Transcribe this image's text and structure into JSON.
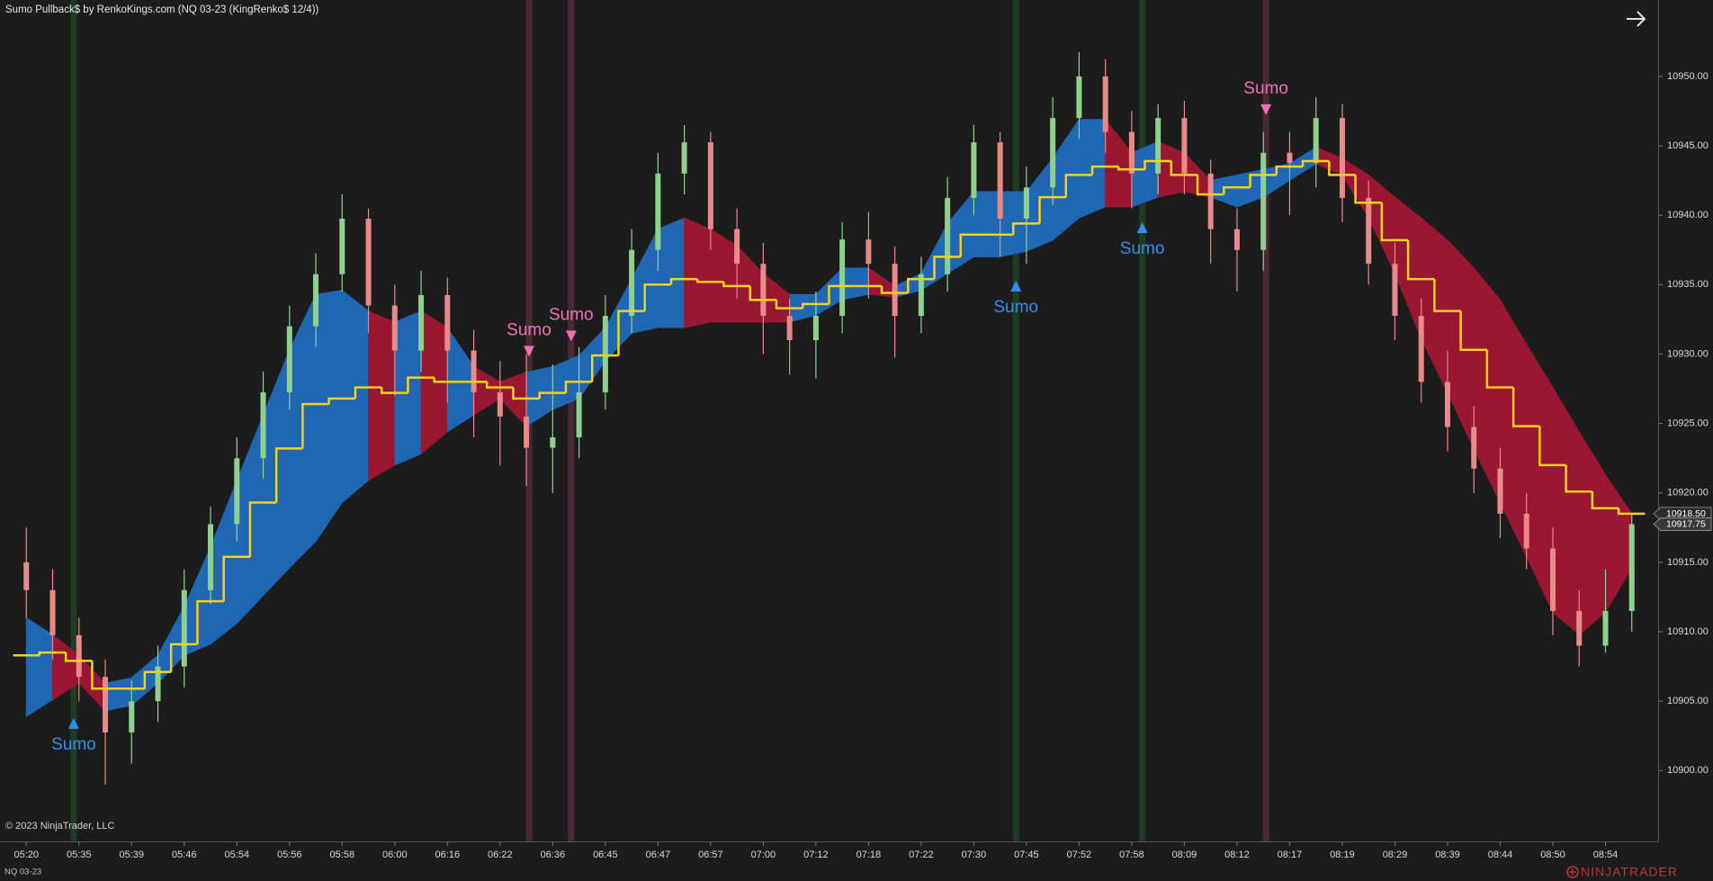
{
  "chart_data": {
    "type": "candlestick",
    "title": "Sumo Pullback$ by RenkoKings.com (NQ 03-23 (KingRenko$ 12/4))",
    "copyright": "© 2023 NinjaTrader, LLC",
    "instrument": "NQ 03-23",
    "brand": "NINJATRADER",
    "background": "#1c1c1c",
    "xlim": [
      -1,
      62
    ],
    "xticks": [
      {
        "value": 0,
        "label": "05:20"
      },
      {
        "value": 2,
        "label": "05:35"
      },
      {
        "value": 4,
        "label": "05:39"
      },
      {
        "value": 6,
        "label": "05:46"
      },
      {
        "value": 8,
        "label": "05:54"
      },
      {
        "value": 10,
        "label": "05:56"
      },
      {
        "value": 12,
        "label": "05:58"
      },
      {
        "value": 14,
        "label": "06:00"
      },
      {
        "value": 16,
        "label": "06:16"
      },
      {
        "value": 18,
        "label": "06:22"
      },
      {
        "value": 20,
        "label": "06:36"
      },
      {
        "value": 22,
        "label": "06:45"
      },
      {
        "value": 24,
        "label": "06:47"
      },
      {
        "value": 26,
        "label": "06:57"
      },
      {
        "value": 28,
        "label": "07:00"
      },
      {
        "value": 30,
        "label": "07:12"
      },
      {
        "value": 32,
        "label": "07:18"
      },
      {
        "value": 34,
        "label": "07:22"
      },
      {
        "value": 36,
        "label": "07:30"
      },
      {
        "value": 38,
        "label": "07:45"
      },
      {
        "value": 40,
        "label": "07:52"
      },
      {
        "value": 42,
        "label": "07:58"
      },
      {
        "value": 44,
        "label": "08:09"
      },
      {
        "value": 46,
        "label": "08:12"
      },
      {
        "value": 48,
        "label": "08:17"
      },
      {
        "value": 50,
        "label": "08:19"
      },
      {
        "value": 52,
        "label": "08:29"
      },
      {
        "value": 54,
        "label": "08:39"
      },
      {
        "value": 56,
        "label": "08:44"
      },
      {
        "value": 58,
        "label": "08:50"
      },
      {
        "value": 60,
        "label": "08:54"
      }
    ],
    "ylim": [
      10894.9,
      10955.5
    ],
    "yticks": [
      {
        "value": 10900,
        "label": "10900.00"
      },
      {
        "value": 10905,
        "label": "10905.00"
      },
      {
        "value": 10910,
        "label": "10910.00"
      },
      {
        "value": 10915,
        "label": "10915.00"
      },
      {
        "value": 10920,
        "label": "10920.00"
      },
      {
        "value": 10925,
        "label": "10925.00"
      },
      {
        "value": 10930,
        "label": "10930.00"
      },
      {
        "value": 10935,
        "label": "10935.00"
      },
      {
        "value": 10940,
        "label": "10940.00"
      },
      {
        "value": 10945,
        "label": "10945.00"
      },
      {
        "value": 10950,
        "label": "10950.00"
      }
    ],
    "grid": false,
    "candles": {
      "up_color": "#8fd08f",
      "down_color": "#e88a8a",
      "open": [
        10915.0,
        10913.0,
        10909.75,
        10906.75,
        10902.75,
        10905.0,
        10907.5,
        10913.0,
        10917.75,
        10922.5,
        10927.25,
        10932.0,
        10935.75,
        10939.75,
        10933.5,
        10930.25,
        10934.25,
        10930.25,
        10927.25,
        10925.5,
        10923.25,
        10924.0,
        10927.25,
        10932.75,
        10937.5,
        10943.0,
        10945.25,
        10939.0,
        10936.5,
        10932.75,
        10931.0,
        10932.75,
        10938.25,
        10936.5,
        10932.75,
        10935.75,
        10941.25,
        10945.25,
        10939.75,
        10942.0,
        10947.0,
        10950.0,
        10946.0,
        10943.0,
        10947.0,
        10943.0,
        10939.0,
        10937.5,
        10944.5,
        10943.75,
        10947.0,
        10941.25,
        10936.5,
        10932.75,
        10928.0,
        10924.75,
        10921.75,
        10918.5,
        10916.0,
        10911.5,
        10909.0,
        10911.5
      ],
      "high": [
        10917.5,
        10914.5,
        10911.0,
        10908.0,
        10906.5,
        10909.0,
        10914.5,
        10919.0,
        10924.0,
        10928.75,
        10933.5,
        10937.25,
        10941.5,
        10940.5,
        10935.0,
        10936.0,
        10935.5,
        10931.75,
        10929.5,
        10930.0,
        10929.25,
        10930.5,
        10934.25,
        10939.0,
        10944.5,
        10946.5,
        10946.0,
        10940.5,
        10938.0,
        10934.0,
        10934.5,
        10939.5,
        10940.25,
        10937.75,
        10937.0,
        10942.75,
        10946.5,
        10946.0,
        10943.5,
        10948.5,
        10951.75,
        10951.25,
        10947.5,
        10948.0,
        10948.25,
        10944.0,
        10940.5,
        10946.0,
        10946.0,
        10948.5,
        10948.0,
        10942.5,
        10938.0,
        10934.0,
        10930.25,
        10926.25,
        10923.25,
        10920.0,
        10917.5,
        10913.0,
        10914.5,
        10918.5
      ],
      "low": [
        10911.0,
        10908.0,
        10905.0,
        10899.0,
        10900.5,
        10903.5,
        10906.0,
        10912.0,
        10916.5,
        10921.0,
        10926.0,
        10930.5,
        10934.5,
        10931.5,
        10927.0,
        10928.75,
        10926.5,
        10924.0,
        10922.0,
        10920.5,
        10920.0,
        10922.5,
        10926.0,
        10931.5,
        10936.0,
        10941.5,
        10937.5,
        10934.0,
        10930.0,
        10928.5,
        10928.25,
        10931.5,
        10934.0,
        10929.75,
        10931.5,
        10934.5,
        10940.0,
        10937.0,
        10936.5,
        10940.75,
        10945.5,
        10944.5,
        10940.5,
        10941.5,
        10941.5,
        10936.5,
        10934.5,
        10936.0,
        10940.0,
        10942.0,
        10939.5,
        10935.0,
        10931.0,
        10926.5,
        10923.0,
        10920.0,
        10916.75,
        10914.5,
        10909.75,
        10907.5,
        10908.5,
        10910.0
      ],
      "close": [
        10913.0,
        10909.75,
        10906.75,
        10902.75,
        10905.0,
        10907.5,
        10913.0,
        10917.75,
        10922.5,
        10927.25,
        10932.0,
        10935.75,
        10939.75,
        10933.5,
        10930.25,
        10934.25,
        10930.25,
        10927.25,
        10925.5,
        10923.25,
        10924.0,
        10927.25,
        10932.75,
        10937.5,
        10943.0,
        10945.25,
        10939.0,
        10936.5,
        10932.75,
        10931.0,
        10932.75,
        10938.25,
        10936.5,
        10932.75,
        10935.75,
        10941.25,
        10945.25,
        10939.75,
        10942.0,
        10947.0,
        10950.0,
        10946.0,
        10943.0,
        10947.0,
        10943.0,
        10939.0,
        10937.5,
        10944.5,
        10943.75,
        10947.0,
        10941.25,
        10936.5,
        10932.75,
        10928.0,
        10924.75,
        10921.75,
        10918.5,
        10916.0,
        10911.5,
        10909.0,
        10911.5,
        10917.75
      ]
    },
    "band": {
      "rising_color": "#1f66b3",
      "falling_color": "#9a1732",
      "upper": [
        10911.0,
        10909.8,
        10908.3,
        10906.3,
        10906.7,
        10908.3,
        10911.8,
        10916.1,
        10920.9,
        10925.6,
        10930.3,
        10934.3,
        10934.6,
        10933.1,
        10932.3,
        10933.1,
        10931.9,
        10929.1,
        10928.0,
        10928.7,
        10929.1,
        10929.9,
        10931.9,
        10935.4,
        10939.0,
        10939.8,
        10939.0,
        10937.8,
        10935.8,
        10934.3,
        10934.3,
        10936.2,
        10936.2,
        10934.9,
        10935.8,
        10939.4,
        10941.7,
        10941.7,
        10941.7,
        10944.1,
        10946.9,
        10946.9,
        10944.5,
        10945.3,
        10944.5,
        10942.5,
        10942.9,
        10943.3,
        10943.7,
        10944.9,
        10944.1,
        10942.9,
        10941.3,
        10939.8,
        10938.2,
        10936.2,
        10933.9,
        10930.7,
        10927.6,
        10924.4,
        10921.3,
        10918.5
      ],
      "lower": [
        10903.9,
        10905.1,
        10906.3,
        10904.3,
        10904.7,
        10906.3,
        10908.3,
        10909.1,
        10910.6,
        10912.6,
        10914.6,
        10916.5,
        10919.3,
        10920.9,
        10922.0,
        10922.8,
        10924.4,
        10925.6,
        10926.8,
        10924.8,
        10926.0,
        10926.8,
        10929.5,
        10931.5,
        10931.9,
        10931.9,
        10932.3,
        10932.3,
        10932.3,
        10932.3,
        10932.8,
        10933.9,
        10934.3,
        10934.1,
        10934.6,
        10935.8,
        10937.0,
        10937.0,
        10937.4,
        10938.2,
        10939.8,
        10940.6,
        10940.6,
        10941.3,
        10941.7,
        10941.3,
        10940.6,
        10941.3,
        10942.5,
        10943.7,
        10942.9,
        10939.8,
        10935.8,
        10931.1,
        10927.2,
        10923.2,
        10919.3,
        10915.4,
        10911.4,
        10909.8,
        10911.4,
        10914.6
      ]
    },
    "ma": {
      "color": "#f5d21c",
      "values": [
        10908.3,
        10908.5,
        10907.9,
        10905.9,
        10905.9,
        10907.1,
        10909.1,
        10912.2,
        10915.4,
        10919.3,
        10923.2,
        10926.4,
        10926.8,
        10927.6,
        10927.2,
        10928.3,
        10928.0,
        10928.0,
        10927.6,
        10926.8,
        10927.2,
        10928.0,
        10929.9,
        10933.1,
        10935.0,
        10935.4,
        10935.2,
        10934.9,
        10933.9,
        10933.3,
        10933.6,
        10934.9,
        10934.9,
        10934.4,
        10935.4,
        10937.0,
        10938.6,
        10938.6,
        10939.4,
        10941.3,
        10942.9,
        10943.5,
        10943.3,
        10943.9,
        10942.9,
        10941.5,
        10942.0,
        10942.9,
        10943.5,
        10943.9,
        10942.9,
        10940.9,
        10938.2,
        10935.4,
        10933.1,
        10930.3,
        10927.6,
        10924.8,
        10922.0,
        10920.1,
        10918.9,
        10918.5
      ]
    },
    "signals": [
      {
        "x": 1.8,
        "y": 10903.4,
        "direction": "up",
        "label": "Sumo",
        "color": "#2e8ff0",
        "stripe_color": "#1f3b22"
      },
      {
        "x": 19.1,
        "y": 10930.2,
        "direction": "down",
        "label": "Sumo",
        "color": "#f36fb4",
        "stripe_color": "#4a2836"
      },
      {
        "x": 20.7,
        "y": 10931.3,
        "direction": "down",
        "label": "Sumo",
        "color": "#f36fb4",
        "stripe_color": "#4a2836"
      },
      {
        "x": 37.6,
        "y": 10934.9,
        "direction": "up",
        "label": "Sumo",
        "color": "#2e8ff0",
        "stripe_color": "#1f3b22"
      },
      {
        "x": 42.4,
        "y": 10939.1,
        "direction": "up",
        "label": "Sumo",
        "color": "#2e8ff0",
        "stripe_color": "#1f3b22"
      },
      {
        "x": 47.1,
        "y": 10947.6,
        "direction": "down",
        "label": "Sumo",
        "color": "#f36fb4",
        "stripe_color": "#4a2836"
      }
    ],
    "last_prices": [
      {
        "value": 10918.5,
        "label": "10918.50"
      },
      {
        "value": 10917.75,
        "label": "10917.75"
      }
    ]
  }
}
